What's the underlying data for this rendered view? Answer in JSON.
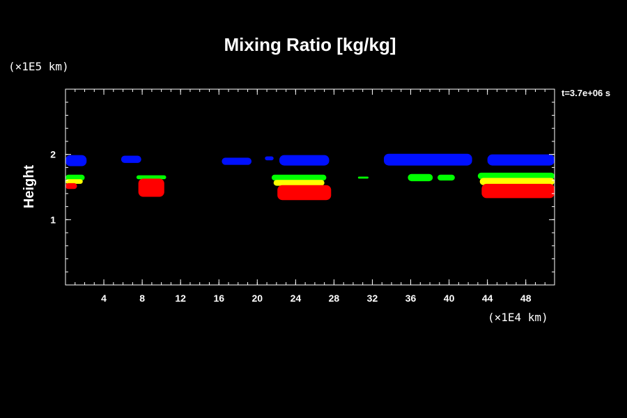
{
  "chart_data": {
    "type": "heatmap",
    "title": "Mixing Ratio [kg/kg]",
    "ylabel": "Height",
    "y_unit_label": "(×1E5 km)",
    "x_unit_label": "(×1E4 km)",
    "time_label": "t=3.7e+06 s",
    "xlim": [
      0,
      51
    ],
    "ylim": [
      0,
      3
    ],
    "x_ticks": [
      4,
      8,
      12,
      16,
      20,
      24,
      28,
      32,
      36,
      40,
      44,
      48
    ],
    "y_ticks": [
      1,
      2
    ],
    "colors": {
      "background": "#000000",
      "blue": "#0010ff",
      "green": "#00ff00",
      "yellow": "#ffff00",
      "red": "#ff0000",
      "axes": "#ffffff"
    },
    "regions": [
      {
        "color": "blue",
        "x0": 0.0,
        "x1": 2.2,
        "y0": 1.82,
        "y1": 1.99
      },
      {
        "color": "blue",
        "x0": 5.8,
        "x1": 7.9,
        "y0": 1.87,
        "y1": 1.98
      },
      {
        "color": "blue",
        "x0": 16.3,
        "x1": 19.4,
        "y0": 1.84,
        "y1": 1.95
      },
      {
        "color": "blue",
        "x0": 20.8,
        "x1": 21.7,
        "y0": 1.91,
        "y1": 1.97
      },
      {
        "color": "blue",
        "x0": 22.3,
        "x1": 27.5,
        "y0": 1.83,
        "y1": 1.99
      },
      {
        "color": "blue",
        "x0": 33.2,
        "x1": 42.4,
        "y0": 1.83,
        "y1": 2.01
      },
      {
        "color": "blue",
        "x0": 44.0,
        "x1": 51.0,
        "y0": 1.83,
        "y1": 2.0
      },
      {
        "color": "green",
        "x0": 0.0,
        "x1": 2.0,
        "y0": 1.6,
        "y1": 1.69
      },
      {
        "color": "yellow",
        "x0": 0.0,
        "x1": 1.8,
        "y0": 1.55,
        "y1": 1.62
      },
      {
        "color": "red",
        "x0": 0.0,
        "x1": 1.2,
        "y0": 1.47,
        "y1": 1.56
      },
      {
        "color": "green",
        "x0": 7.4,
        "x1": 10.5,
        "y0": 1.62,
        "y1": 1.68
      },
      {
        "color": "red",
        "x0": 7.6,
        "x1": 10.3,
        "y0": 1.35,
        "y1": 1.63
      },
      {
        "color": "green",
        "x0": 21.5,
        "x1": 27.2,
        "y0": 1.6,
        "y1": 1.69
      },
      {
        "color": "yellow",
        "x0": 21.7,
        "x1": 27.0,
        "y0": 1.52,
        "y1": 1.61
      },
      {
        "color": "red",
        "x0": 22.1,
        "x1": 27.7,
        "y0": 1.3,
        "y1": 1.53
      },
      {
        "color": "green",
        "x0": 30.5,
        "x1": 31.6,
        "y0": 1.63,
        "y1": 1.66
      },
      {
        "color": "green",
        "x0": 35.7,
        "x1": 38.3,
        "y0": 1.59,
        "y1": 1.7
      },
      {
        "color": "green",
        "x0": 38.8,
        "x1": 40.6,
        "y0": 1.6,
        "y1": 1.69
      },
      {
        "color": "green",
        "x0": 43.0,
        "x1": 51.0,
        "y0": 1.62,
        "y1": 1.72
      },
      {
        "color": "yellow",
        "x0": 43.2,
        "x1": 51.0,
        "y0": 1.53,
        "y1": 1.64
      },
      {
        "color": "red",
        "x0": 43.4,
        "x1": 51.0,
        "y0": 1.33,
        "y1": 1.55
      }
    ]
  }
}
